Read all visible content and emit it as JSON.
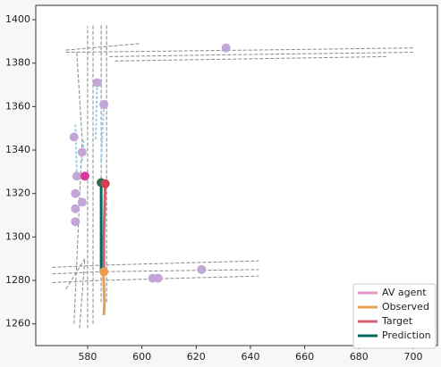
{
  "chart_data": {
    "type": "scatter",
    "xlim": [
      560.9,
      708.9
    ],
    "ylim": [
      1250,
      1406.6
    ],
    "xticks": [
      580,
      600,
      620,
      640,
      660,
      680,
      700
    ],
    "yticks": [
      1260,
      1280,
      1300,
      1320,
      1340,
      1360,
      1380,
      1400
    ],
    "lanes": {
      "color": "#888888",
      "x": [
        [
          572,
          599
        ],
        [
          572,
          640,
          700
        ],
        [
          588,
          640,
          700
        ],
        [
          590,
          640,
          690
        ],
        [
          567,
          585,
          643
        ],
        [
          567,
          585,
          643
        ],
        [
          567,
          585,
          643
        ],
        [
          580,
          580,
          580
        ],
        [
          582,
          582,
          582
        ],
        [
          585,
          585,
          585
        ],
        [
          587,
          587,
          587
        ],
        [
          577,
          579,
          572
        ],
        [
          575,
          578,
          576
        ]
      ],
      "y": [
        [
          1386,
          1389
        ],
        [
          1385,
          1386,
          1387
        ],
        [
          1383,
          1384,
          1385
        ],
        [
          1381,
          1382,
          1383
        ],
        [
          1286,
          1287,
          1289
        ],
        [
          1283,
          1284,
          1285
        ],
        [
          1279,
          1280,
          1282
        ],
        [
          1258,
          1330,
          1397
        ],
        [
          1260,
          1330,
          1398
        ],
        [
          1270,
          1330,
          1398
        ],
        [
          1270,
          1330,
          1398
        ],
        [
          1258,
          1290,
          1276
        ],
        [
          1260,
          1345,
          1385
        ]
      ]
    },
    "trails": {
      "color": "#8fd3f0",
      "x": [
        [
          583,
          583.5
        ],
        [
          585,
          586
        ],
        [
          576,
          575.5
        ],
        [
          578,
          578.5
        ]
      ],
      "y": [
        [
          1345,
          1371
        ],
        [
          1335,
          1361
        ],
        [
          1330,
          1352
        ],
        [
          1335,
          1345
        ]
      ]
    },
    "series": [
      {
        "name": "AV agent",
        "color": "#dd99cc",
        "point_color": "#c3a6d8",
        "style": "points",
        "x": [
          631,
          583.5,
          586,
          575,
          578,
          576,
          575.5,
          578,
          575.5,
          575.5,
          604,
          606,
          622
        ],
        "y": [
          1387,
          1371,
          1361,
          1346,
          1339,
          1328,
          1320,
          1316,
          1313,
          1307,
          1281,
          1281,
          1285
        ]
      },
      {
        "name": "Observed",
        "color": "#e8a050",
        "style": "line",
        "x": [
          586,
          586.2,
          586,
          585.8
        ],
        "y": [
          1264,
          1270,
          1278,
          1284
        ]
      },
      {
        "name": "Target",
        "color": "#d06070",
        "style": "line",
        "x": [
          586,
          586,
          586.3,
          586.5
        ],
        "y": [
          1284,
          1300,
          1315,
          1324.5
        ]
      },
      {
        "name": "Prediction",
        "color": "#006a60",
        "style": "line",
        "x": [
          585,
          585,
          585,
          585
        ],
        "y": [
          1284,
          1300,
          1315,
          1325
        ]
      }
    ],
    "markers": [
      {
        "x": 579,
        "y": 1328,
        "color": "#d63aa0"
      },
      {
        "x": 586,
        "y": 1284,
        "color": "#e8a050"
      },
      {
        "x": 585,
        "y": 1325,
        "color": "#2f6a55"
      },
      {
        "x": 586.5,
        "y": 1324.5,
        "color": "#d04050"
      }
    ]
  }
}
